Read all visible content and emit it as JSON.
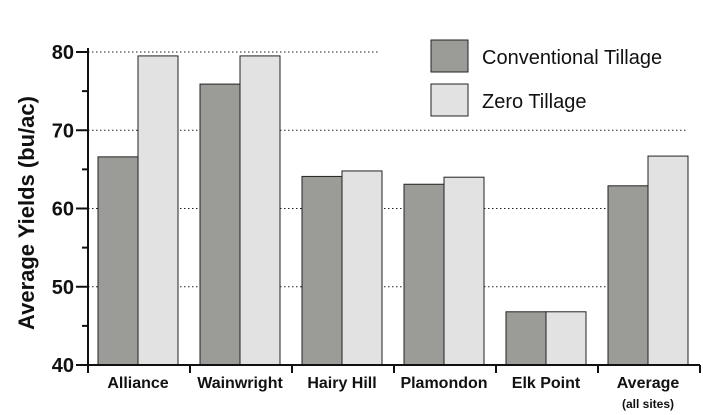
{
  "chart_data": {
    "type": "bar",
    "categories": [
      "Alliance",
      "Wainwright",
      "Hairy Hill",
      "Plamondon",
      "Elk Point",
      "Average"
    ],
    "category_sublabels": [
      "",
      "",
      "",
      "",
      "",
      "(all sites)"
    ],
    "series": [
      {
        "name": "Conventional Tillage",
        "values": [
          66.6,
          75.9,
          64.1,
          63.1,
          46.8,
          62.9
        ],
        "color": "#9b9c97"
      },
      {
        "name": "Zero Tillage",
        "values": [
          79.5,
          79.5,
          64.8,
          64.0,
          46.8,
          66.7
        ],
        "color": "#e2e2e2"
      }
    ],
    "ylabel": "Average Yields (bu/ac)",
    "xlabel": "",
    "ylim": [
      40,
      80
    ],
    "yticks": [
      40,
      50,
      60,
      70,
      80
    ],
    "grid": "dotted horizontal",
    "legend_position": "top-right"
  }
}
